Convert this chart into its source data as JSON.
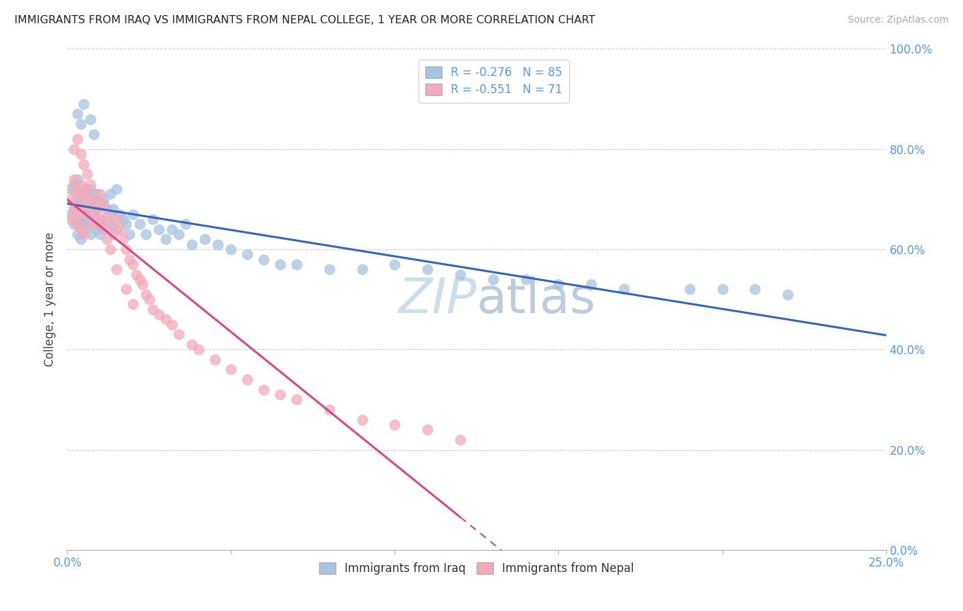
{
  "title": "IMMIGRANTS FROM IRAQ VS IMMIGRANTS FROM NEPAL COLLEGE, 1 YEAR OR MORE CORRELATION CHART",
  "source": "Source: ZipAtlas.com",
  "xlim": [
    0.0,
    0.25
  ],
  "ylim": [
    0.0,
    1.0
  ],
  "ylabel": "College, 1 year or more",
  "legend_r_iraq": "R = -0.276",
  "legend_n_iraq": "N = 85",
  "legend_r_nepal": "R = -0.551",
  "legend_n_nepal": "N = 71",
  "legend_label_iraq": "Immigrants from Iraq",
  "legend_label_nepal": "Immigrants from Nepal",
  "color_iraq": "#A8C4E0",
  "color_nepal": "#F4AABA",
  "color_iraq_line": "#3366BB",
  "color_nepal_line": "#DD4488",
  "color_axis_labels": "#5599EE",
  "watermark_color": "#CCDDEE",
  "background_color": "#FFFFFF",
  "grid_color": "#CCCCCC",
  "iraq_x": [
    0.001,
    0.001,
    0.002,
    0.002,
    0.002,
    0.003,
    0.003,
    0.003,
    0.003,
    0.003,
    0.004,
    0.004,
    0.004,
    0.004,
    0.005,
    0.005,
    0.005,
    0.005,
    0.005,
    0.006,
    0.006,
    0.006,
    0.007,
    0.007,
    0.007,
    0.007,
    0.008,
    0.008,
    0.008,
    0.009,
    0.009,
    0.009,
    0.01,
    0.01,
    0.01,
    0.011,
    0.011,
    0.012,
    0.012,
    0.013,
    0.013,
    0.014,
    0.014,
    0.015,
    0.015,
    0.016,
    0.017,
    0.018,
    0.019,
    0.02,
    0.022,
    0.024,
    0.026,
    0.028,
    0.03,
    0.032,
    0.034,
    0.036,
    0.038,
    0.042,
    0.046,
    0.05,
    0.055,
    0.06,
    0.065,
    0.07,
    0.08,
    0.09,
    0.1,
    0.11,
    0.12,
    0.13,
    0.14,
    0.15,
    0.16,
    0.17,
    0.19,
    0.2,
    0.21,
    0.22,
    0.003,
    0.004,
    0.005,
    0.007,
    0.008
  ],
  "iraq_y": [
    0.67,
    0.72,
    0.68,
    0.73,
    0.65,
    0.7,
    0.66,
    0.74,
    0.63,
    0.69,
    0.71,
    0.65,
    0.68,
    0.62,
    0.72,
    0.67,
    0.64,
    0.7,
    0.66,
    0.71,
    0.65,
    0.68,
    0.72,
    0.66,
    0.63,
    0.69,
    0.7,
    0.65,
    0.67,
    0.68,
    0.64,
    0.71,
    0.66,
    0.69,
    0.63,
    0.7,
    0.65,
    0.68,
    0.64,
    0.67,
    0.71,
    0.65,
    0.68,
    0.72,
    0.64,
    0.67,
    0.66,
    0.65,
    0.63,
    0.67,
    0.65,
    0.63,
    0.66,
    0.64,
    0.62,
    0.64,
    0.63,
    0.65,
    0.61,
    0.62,
    0.61,
    0.6,
    0.59,
    0.58,
    0.57,
    0.57,
    0.56,
    0.56,
    0.57,
    0.56,
    0.55,
    0.54,
    0.54,
    0.53,
    0.53,
    0.52,
    0.52,
    0.52,
    0.52,
    0.51,
    0.87,
    0.85,
    0.89,
    0.86,
    0.83
  ],
  "nepal_x": [
    0.001,
    0.001,
    0.002,
    0.002,
    0.002,
    0.003,
    0.003,
    0.003,
    0.004,
    0.004,
    0.004,
    0.005,
    0.005,
    0.005,
    0.006,
    0.006,
    0.007,
    0.007,
    0.008,
    0.008,
    0.009,
    0.01,
    0.01,
    0.011,
    0.012,
    0.013,
    0.014,
    0.015,
    0.016,
    0.017,
    0.018,
    0.019,
    0.02,
    0.021,
    0.022,
    0.023,
    0.024,
    0.025,
    0.026,
    0.028,
    0.03,
    0.032,
    0.034,
    0.038,
    0.04,
    0.045,
    0.05,
    0.055,
    0.06,
    0.065,
    0.07,
    0.08,
    0.09,
    0.1,
    0.11,
    0.12,
    0.002,
    0.003,
    0.004,
    0.005,
    0.006,
    0.007,
    0.008,
    0.009,
    0.01,
    0.011,
    0.012,
    0.013,
    0.015,
    0.018,
    0.02
  ],
  "nepal_y": [
    0.7,
    0.66,
    0.72,
    0.68,
    0.74,
    0.71,
    0.67,
    0.65,
    0.73,
    0.69,
    0.64,
    0.71,
    0.67,
    0.63,
    0.72,
    0.68,
    0.7,
    0.65,
    0.69,
    0.66,
    0.68,
    0.71,
    0.65,
    0.69,
    0.67,
    0.65,
    0.63,
    0.66,
    0.64,
    0.62,
    0.6,
    0.58,
    0.57,
    0.55,
    0.54,
    0.53,
    0.51,
    0.5,
    0.48,
    0.47,
    0.46,
    0.45,
    0.43,
    0.41,
    0.4,
    0.38,
    0.36,
    0.34,
    0.32,
    0.31,
    0.3,
    0.28,
    0.26,
    0.25,
    0.24,
    0.22,
    0.8,
    0.82,
    0.79,
    0.77,
    0.75,
    0.73,
    0.7,
    0.68,
    0.66,
    0.64,
    0.62,
    0.6,
    0.56,
    0.52,
    0.49
  ]
}
